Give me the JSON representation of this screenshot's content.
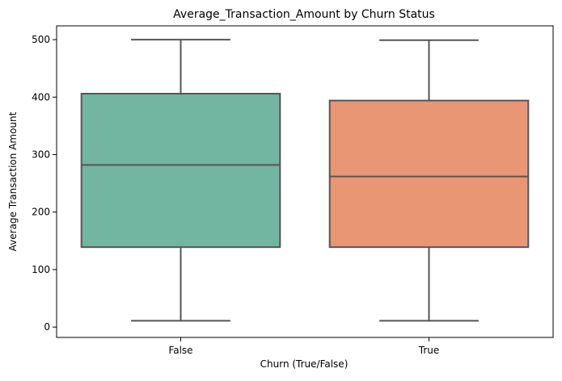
{
  "chart_data": {
    "type": "box",
    "title": "Average_Transaction_Amount by Churn Status",
    "xlabel": "Churn (True/False)",
    "ylabel": "Average Transaction Amount",
    "ylim": [
      -18,
      524
    ],
    "yticks": [
      0,
      100,
      200,
      300,
      400,
      500
    ],
    "grid": false,
    "categories": [
      "False",
      "True"
    ],
    "boxes": [
      {
        "category": "False",
        "whisker_low": 11,
        "q1": 139,
        "median": 282,
        "q3": 406,
        "whisker_high": 500,
        "color": "#72b5a0"
      },
      {
        "category": "True",
        "whisker_low": 11,
        "q1": 139,
        "median": 262,
        "q3": 394,
        "whisker_high": 499,
        "color": "#e99675"
      }
    ],
    "line_color": "#555555"
  }
}
